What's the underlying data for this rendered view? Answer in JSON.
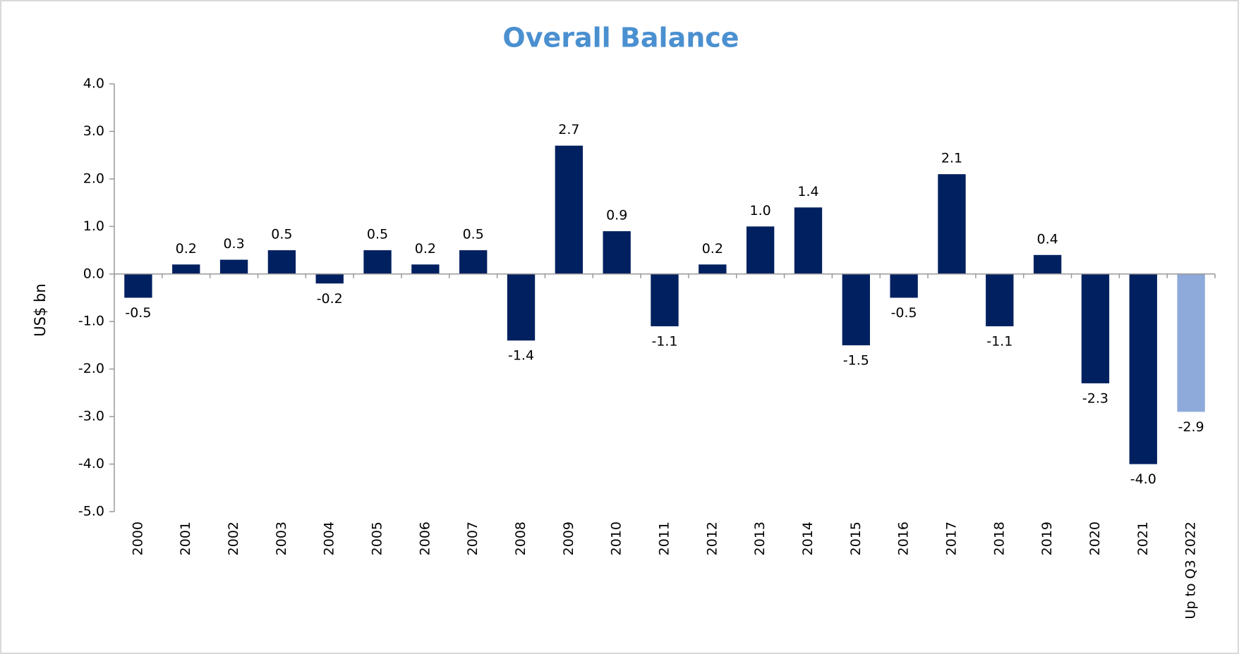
{
  "chart_data": {
    "type": "bar",
    "title": "Overall Balance",
    "y_label": "US$ bn",
    "categories": [
      "2000",
      "2001",
      "2002",
      "2003",
      "2004",
      "2005",
      "2006",
      "2007",
      "2008",
      "2009",
      "2010",
      "2011",
      "2012",
      "2013",
      "2014",
      "2015",
      "2016",
      "2017",
      "2018",
      "2019",
      "2020",
      "2021",
      "Up to Q3 2022"
    ],
    "values": [
      -0.5,
      0.2,
      0.3,
      0.5,
      -0.2,
      0.5,
      0.2,
      0.5,
      -1.4,
      2.7,
      0.9,
      -1.1,
      0.2,
      1.0,
      1.4,
      -1.5,
      -0.5,
      2.1,
      -1.1,
      0.4,
      -2.3,
      -4.0,
      -2.9
    ],
    "value_labels": [
      "-0.5",
      "0.2",
      "0.3",
      "0.5",
      "-0.2",
      "0.5",
      "0.2",
      "0.5",
      "-1.4",
      "2.7",
      "0.9",
      "-1.1",
      "0.2",
      "1.0",
      "1.4",
      "-1.5",
      "-0.5",
      "2.1",
      "-1.1",
      "0.4",
      "-2.3",
      "-4.0",
      "-2.9"
    ],
    "colors": [
      "#002060",
      "#002060",
      "#002060",
      "#002060",
      "#002060",
      "#002060",
      "#002060",
      "#002060",
      "#002060",
      "#002060",
      "#002060",
      "#002060",
      "#002060",
      "#002060",
      "#002060",
      "#002060",
      "#002060",
      "#002060",
      "#002060",
      "#002060",
      "#002060",
      "#002060",
      "#8eaadb"
    ],
    "ylim": [
      -5,
      4
    ],
    "yticks": [
      {
        "value": 4,
        "label": "4.0"
      },
      {
        "value": 3,
        "label": "3.0"
      },
      {
        "value": 2,
        "label": "2.0"
      },
      {
        "value": 1,
        "label": "1.0"
      },
      {
        "value": 0,
        "label": "0.0"
      },
      {
        "value": -1,
        "label": "-1.0"
      },
      {
        "value": -2,
        "label": "-2.0"
      },
      {
        "value": -3,
        "label": "-3.0"
      },
      {
        "value": -4,
        "label": "-4.0"
      },
      {
        "value": -5,
        "label": "-5.0"
      }
    ],
    "grid": false
  }
}
